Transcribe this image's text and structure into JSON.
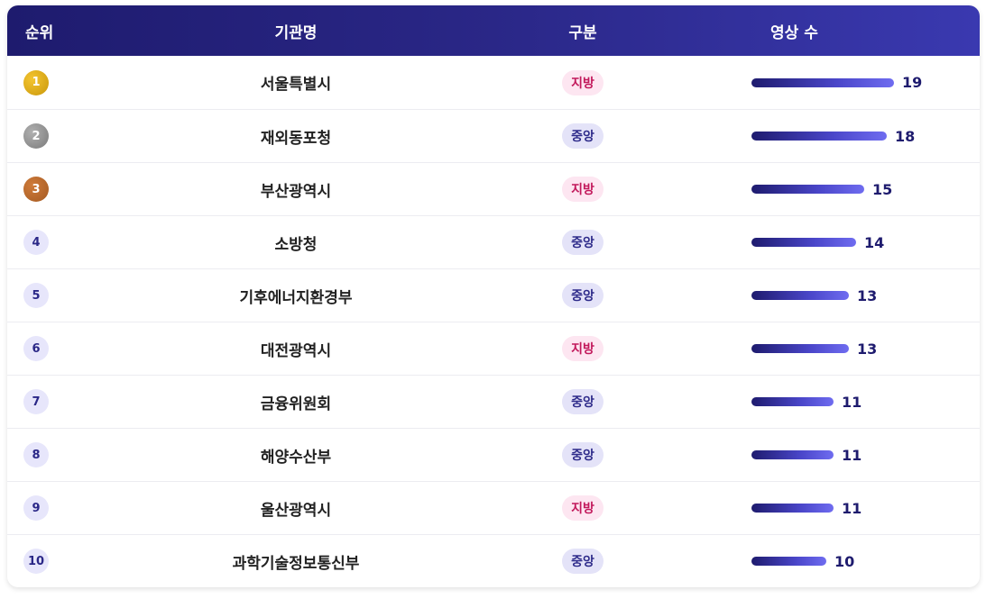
{
  "header": {
    "rank": "순위",
    "org": "기관명",
    "type": "구분",
    "count": "영상 수"
  },
  "max_count": 19,
  "rows": [
    {
      "rank": "1",
      "medal": "gold",
      "org": "서울특별시",
      "type": "지방",
      "type_kind": "local",
      "count": 19
    },
    {
      "rank": "2",
      "medal": "silver",
      "org": "재외동포청",
      "type": "중앙",
      "type_kind": "central",
      "count": 18
    },
    {
      "rank": "3",
      "medal": "bronze",
      "org": "부산광역시",
      "type": "지방",
      "type_kind": "local",
      "count": 15
    },
    {
      "rank": "4",
      "medal": "",
      "org": "소방청",
      "type": "중앙",
      "type_kind": "central",
      "count": 14
    },
    {
      "rank": "5",
      "medal": "",
      "org": "기후에너지환경부",
      "type": "중앙",
      "type_kind": "central",
      "count": 13
    },
    {
      "rank": "6",
      "medal": "",
      "org": "대전광역시",
      "type": "지방",
      "type_kind": "local",
      "count": 13
    },
    {
      "rank": "7",
      "medal": "",
      "org": "금융위원회",
      "type": "중앙",
      "type_kind": "central",
      "count": 11
    },
    {
      "rank": "8",
      "medal": "",
      "org": "해양수산부",
      "type": "중앙",
      "type_kind": "central",
      "count": 11
    },
    {
      "rank": "9",
      "medal": "",
      "org": "울산광역시",
      "type": "지방",
      "type_kind": "local",
      "count": 11
    },
    {
      "rank": "10",
      "medal": "",
      "org": "과학기술정보통신부",
      "type": "중앙",
      "type_kind": "central",
      "count": 10
    }
  ],
  "colors": {
    "header_start": "#1e1b6e",
    "header_end": "#3a39b0",
    "local_bg": "#fde6f1",
    "local_text": "#c2185b",
    "central_bg": "#e4e3f8",
    "central_text": "#2e2b8a"
  }
}
